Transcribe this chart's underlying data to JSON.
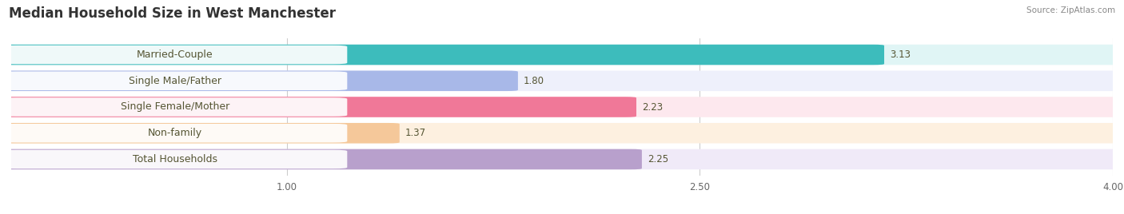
{
  "title": "Median Household Size in West Manchester",
  "source": "Source: ZipAtlas.com",
  "categories": [
    "Married-Couple",
    "Single Male/Father",
    "Single Female/Mother",
    "Non-family",
    "Total Households"
  ],
  "values": [
    3.13,
    1.8,
    2.23,
    1.37,
    2.25
  ],
  "bar_colors": [
    "#3dbcbc",
    "#a8b8e8",
    "#f07898",
    "#f5c89a",
    "#b8a0cc"
  ],
  "bar_bg_colors": [
    "#e0f5f5",
    "#eef0fb",
    "#fde8ee",
    "#fdf0e0",
    "#f0eaf8"
  ],
  "xlim_min": 0,
  "xlim_max": 4.0,
  "xticks": [
    1.0,
    2.5,
    4.0
  ],
  "xtick_labels": [
    "1.00",
    "2.50",
    "4.00"
  ],
  "value_fontsize": 8.5,
  "label_fontsize": 9,
  "title_fontsize": 12,
  "background_color": "#ffffff"
}
